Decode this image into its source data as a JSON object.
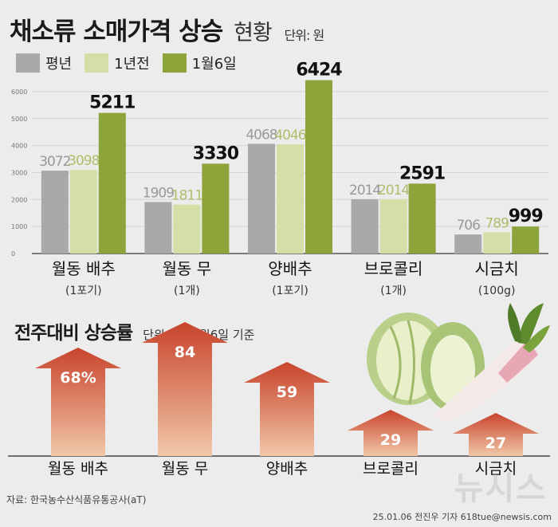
{
  "header": {
    "title": "채소류 소매가격 상승",
    "subtitle": "현황",
    "unit": "단위: 원"
  },
  "colors": {
    "avg": "#a9a9a9",
    "prev_year": "#d3dfa6",
    "current": "#8da43a",
    "arrow_top": "#c8442c",
    "arrow_bottom": "#f1c7a8"
  },
  "chart_data": [
    {
      "type": "bar",
      "categories": [
        "월동 배추",
        "월동 무",
        "양배추",
        "브로콜리",
        "시금치"
      ],
      "category_units": [
        "(1포기)",
        "(1개)",
        "(1포기)",
        "(1개)",
        "(100g)"
      ],
      "series": [
        {
          "name": "평년",
          "values": [
            3072,
            1909,
            4068,
            2014,
            706
          ]
        },
        {
          "name": "1년전",
          "values": [
            3098,
            1811,
            4046,
            2014,
            789
          ]
        },
        {
          "name": "1월6일",
          "values": [
            5211,
            3330,
            6424,
            2591,
            999
          ]
        }
      ],
      "y_ticks": [
        "0",
        "1000",
        "2000",
        "3000",
        "4000",
        "5000",
        "6000"
      ],
      "ylim": [
        0,
        6500
      ],
      "grid": true,
      "legend": "top-left"
    },
    {
      "type": "bar",
      "title": "전주대비 상승률",
      "unit_note": "단위: %, 1월6일 기준",
      "categories": [
        "월동 배추",
        "월동 무",
        "양배추",
        "브로콜리",
        "시금치"
      ],
      "values": [
        68,
        84,
        59,
        29,
        27
      ],
      "value_labels": [
        "68%",
        "84",
        "59",
        "29",
        "27"
      ]
    }
  ],
  "footer": {
    "source": "자료: 한국농수산식품유통공사(aT)",
    "credit": "25.01.06 전진우 기자 618tue@newsis.com",
    "watermark": "뉴시스"
  }
}
